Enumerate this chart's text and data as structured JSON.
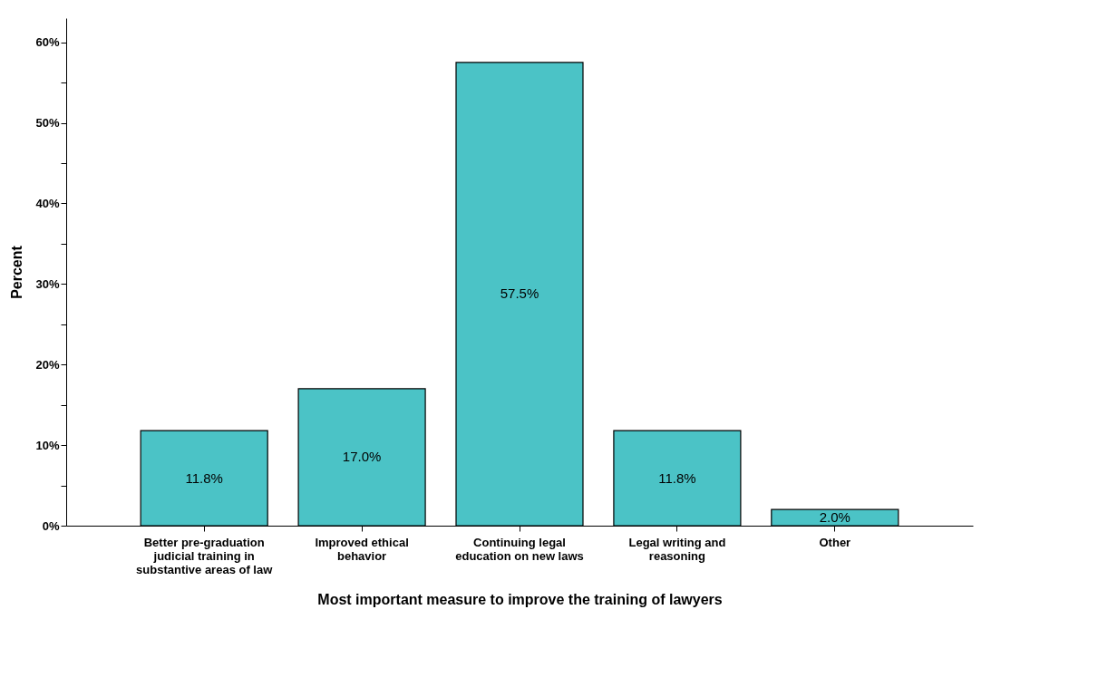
{
  "chart_data": {
    "type": "bar",
    "xlabel": "Most important measure to improve the training of lawyers",
    "ylabel": "Percent",
    "categories": [
      "Better pre-graduation judicial training in substantive areas of law",
      "Improved ethical behavior",
      "Continuing legal education on new laws",
      "Legal writing and reasoning",
      "Other"
    ],
    "values": [
      11.8,
      17.0,
      57.5,
      11.8,
      2.0
    ],
    "value_labels": [
      "11.8%",
      "17.0%",
      "57.5%",
      "11.8%",
      "2.0%"
    ],
    "color": "#4bc3c6",
    "ylim": [
      0,
      63
    ],
    "yticks": [
      {
        "value": 0,
        "label": "0%"
      },
      {
        "value": 5,
        "label": null
      },
      {
        "value": 10,
        "label": "10%"
      },
      {
        "value": 15,
        "label": null
      },
      {
        "value": 20,
        "label": "20%"
      },
      {
        "value": 25,
        "label": null
      },
      {
        "value": 30,
        "label": "30%"
      },
      {
        "value": 35,
        "label": null
      },
      {
        "value": 40,
        "label": "40%"
      },
      {
        "value": 45,
        "label": null
      },
      {
        "value": 50,
        "label": "50%"
      },
      {
        "value": 55,
        "label": null
      },
      {
        "value": 60,
        "label": "60%"
      }
    ],
    "grid": false
  }
}
